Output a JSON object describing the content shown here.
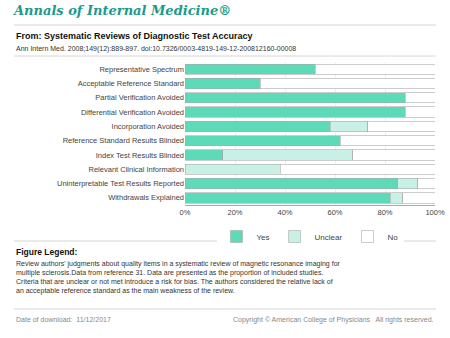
{
  "chart_data": {
    "type": "bar",
    "orientation": "horizontal",
    "stacked": true,
    "title": "Annals of Internal Medicine®",
    "subtitle": "From: Systematic Reviews of Diagnostic Test Accuracy",
    "annotations": [
      "Ann Intern Med. 2008;149(12):889-897. doi:10.7326/0003-4819-149-12-200812160-00008",
      "Figure Legend:",
      "Review authors' judgments about quality items in a systematic review of magnetic resonance imaging for multiple sclerosis.Data from reference 31. Data are presented as the proportion of included studies. Criteria that are unclear or not met introduce a risk for bias. The authors considered the relative lack of an acceptable reference standard as the main weakness of the review.",
      "Date of download:  11/12/2017",
      "Copyright © American College of Physicians   All rights reserved."
    ],
    "categories": [
      "Representative Spectrum",
      "Acceptable Reference Standard",
      "Partial Verification Avoided",
      "Differential Verification Avoided",
      "Incorporation Avoided",
      "Reference Standard Results Blinded",
      "Index Test Results Blinded",
      "Relevant Clinical Information",
      "Uninterpretable Test Results Reported",
      "Withdrawals Explained"
    ],
    "series": [
      {
        "name": "Yes",
        "color": "#5ddbb8",
        "values": [
          52,
          30,
          88,
          88,
          58,
          62,
          15,
          0,
          85,
          82
        ]
      },
      {
        "name": "Unclear",
        "color": "#c8f0e4",
        "values": [
          0,
          0,
          0,
          0,
          15,
          0,
          52,
          38,
          8,
          5
        ]
      },
      {
        "name": "No",
        "color": "#ffffff",
        "values": [
          48,
          70,
          12,
          12,
          27,
          38,
          33,
          62,
          7,
          13
        ]
      }
    ],
    "xlim": [
      0,
      100
    ],
    "xticks": [
      {
        "value": 0,
        "label": "0%"
      },
      {
        "value": 20,
        "label": "20%"
      },
      {
        "value": 40,
        "label": "40%"
      },
      {
        "value": 60,
        "label": "60%"
      },
      {
        "value": 80,
        "label": "80%"
      },
      {
        "value": 100,
        "label": "100%"
      }
    ],
    "grid": true,
    "legend": "bottom"
  }
}
